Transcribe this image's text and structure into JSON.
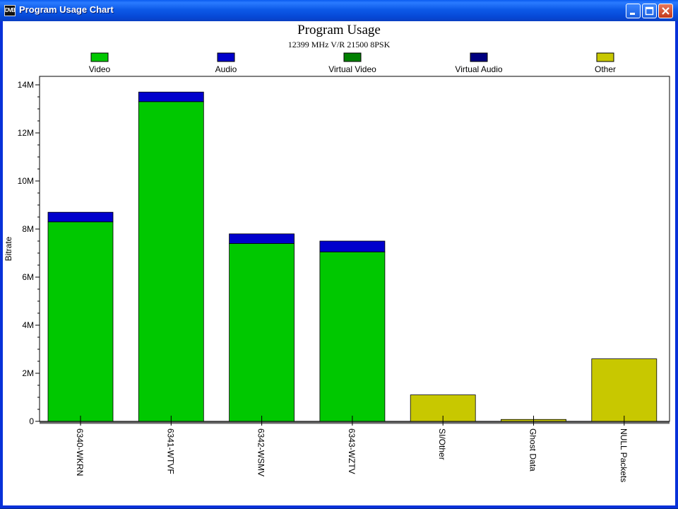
{
  "window": {
    "title": "Program Usage Chart",
    "icon_label": "DVB"
  },
  "colors": {
    "video": "#00c800",
    "audio": "#0000cc",
    "virtual_video": "#008000",
    "virtual_audio": "#000080",
    "other": "#c8c800"
  },
  "chart_data": {
    "type": "bar",
    "stacked": true,
    "title": "Program Usage",
    "subtitle": "12399 MHz V/R 21500 8PSK",
    "ylabel": "Bitrate",
    "xlabel": "",
    "ylim": [
      0,
      14000000
    ],
    "yticks": [
      0,
      2000000,
      4000000,
      6000000,
      8000000,
      10000000,
      12000000,
      14000000
    ],
    "ytick_labels": [
      "0",
      "2M",
      "4M",
      "6M",
      "8M",
      "10M",
      "12M",
      "14M"
    ],
    "legend_position": "top",
    "categories": [
      "6340-WKRN",
      "6341-WTVF",
      "6342-WSMV",
      "6343-WZTV",
      "SI/Other",
      "Ghost Data",
      "NULL Packets"
    ],
    "series": [
      {
        "name": "Video",
        "color": "#00c800",
        "values": [
          8300000,
          13300000,
          7400000,
          7050000,
          0,
          0,
          0
        ]
      },
      {
        "name": "Audio",
        "color": "#0000cc",
        "values": [
          400000,
          400000,
          400000,
          450000,
          0,
          0,
          0
        ]
      },
      {
        "name": "Virtual Video",
        "color": "#008000",
        "values": [
          0,
          0,
          0,
          0,
          0,
          0,
          0
        ]
      },
      {
        "name": "Virtual Audio",
        "color": "#000080",
        "values": [
          0,
          0,
          0,
          0,
          0,
          0,
          0
        ]
      },
      {
        "name": "Other",
        "color": "#c8c800",
        "values": [
          0,
          0,
          0,
          0,
          1100000,
          80000,
          2600000
        ]
      }
    ]
  }
}
